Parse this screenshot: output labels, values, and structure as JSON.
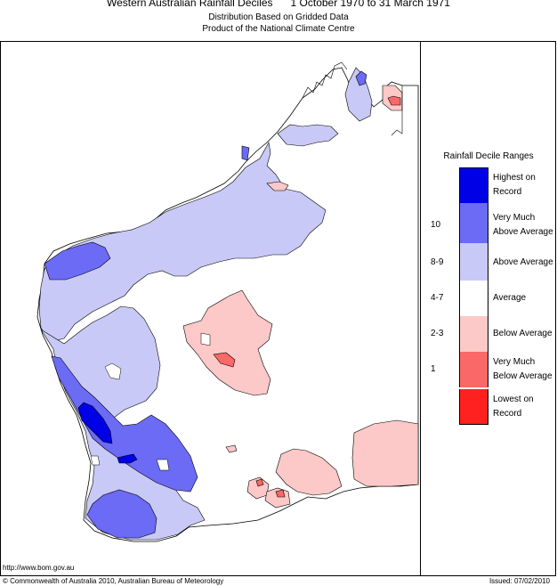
{
  "title": "Western Australian Rainfall Deciles      1 October 1970 to 31 March 1971",
  "subtitle_1": "Distribution Based on Gridded Data",
  "subtitle_2": "Product of the National Climate Centre",
  "legend": {
    "title": "Rainfall Decile Ranges",
    "items": [
      {
        "range": "",
        "line1": "Highest on",
        "line2": "Record",
        "color": "#0000e6"
      },
      {
        "range": "10",
        "line1": "Very Much",
        "line2": "Above Average",
        "color": "#6b6bf5"
      },
      {
        "range": "8-9",
        "line1": "Above Average",
        "line2": "",
        "color": "#c9c9f7"
      },
      {
        "range": "4-7",
        "line1": "Average",
        "line2": "",
        "color": "#ffffff"
      },
      {
        "range": "2-3",
        "line1": "Below Average",
        "line2": "",
        "color": "#fcc8c8"
      },
      {
        "range": "1",
        "line1": "Very Much",
        "line2": "Below Average",
        "color": "#fb6868"
      },
      {
        "range": "",
        "line1": "Lowest on",
        "line2": "Record",
        "color": "#ff2020"
      }
    ]
  },
  "footer": {
    "url": "http://www.bom.gov.au",
    "copyright": "© Commonwealth of Australia 2010, Australian Bureau of Meteorology",
    "issued": "Issued: 07/02/2010"
  },
  "colors": {
    "highest": "#0000e6",
    "very_much_above": "#6b6bf5",
    "above": "#c9c9f7",
    "average": "#ffffff",
    "below": "#fcc8c8",
    "very_much_below": "#fb6868",
    "lowest": "#ff2020"
  }
}
